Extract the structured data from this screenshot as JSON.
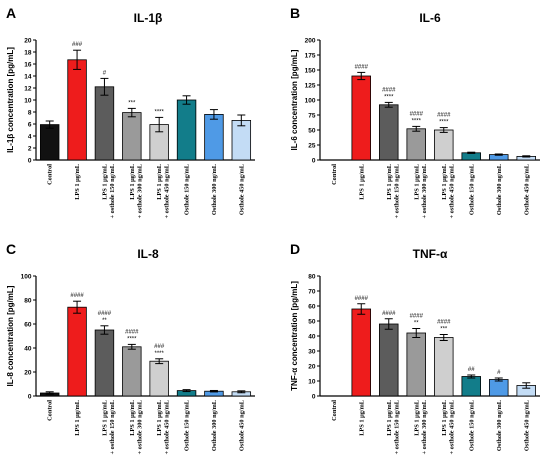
{
  "colors": {
    "Control": "#111111",
    "LPS": "#ee1c1c",
    "LPS_osthole_150": "#5c5c5c",
    "LPS_osthole_300": "#9a9a9a",
    "LPS_osthole_450": "#cfcfcf",
    "Osthole_150": "#127d8a",
    "Osthole_300": "#4f9ae6",
    "Osthole_450": "#c3dcf5"
  },
  "chart_data": [
    {
      "type": "bar",
      "panel_letter": "A",
      "title": "IL-1β",
      "ylabel": "IL-1β concentration [pg/mL]",
      "categories": [
        [
          "Control"
        ],
        [
          "LPS 1 μg/mL"
        ],
        [
          "LPS 1 μg/mL",
          "+ osthole 150 ng/mL"
        ],
        [
          "LPS 1 μg/mL",
          "+ osthole 300 ng/mL"
        ],
        [
          "LPS 1 μg/mL",
          "+ osthole 450 ng/mL"
        ],
        [
          "Osthole 150 ng/mL"
        ],
        [
          "Osthole 300 ng/mL"
        ],
        [
          "Osthole 450 ng/mL"
        ]
      ],
      "values": [
        5.9,
        16.7,
        12.2,
        7.9,
        5.9,
        10.0,
        7.6,
        6.6
      ],
      "errors": [
        0.6,
        1.6,
        1.4,
        0.7,
        1.2,
        0.7,
        0.8,
        0.9
      ],
      "annotations": [
        [],
        [
          "###"
        ],
        [
          "#"
        ],
        [
          "***"
        ],
        [
          "****"
        ],
        [],
        [],
        []
      ],
      "ylim": [
        0,
        20
      ],
      "yticks": [
        0,
        2,
        4,
        6,
        8,
        10,
        12,
        14,
        16,
        18,
        20
      ]
    },
    {
      "type": "bar",
      "panel_letter": "B",
      "title": "IL-6",
      "ylabel": "IL-6 concentration [pg/mL]",
      "categories": [
        [
          "Control"
        ],
        [
          "LPS 1 μg/mL"
        ],
        [
          "LPS 1 μg/mL",
          "+ osthole 150 ng/mL"
        ],
        [
          "LPS 1 μg/mL",
          "+ osthole 300 ng/mL"
        ],
        [
          "LPS 1 μg/mL",
          "+ osthole 450 ng/mL"
        ],
        [
          "Osthole 150 ng/mL"
        ],
        [
          "Osthole 300 ng/mL"
        ],
        [
          "Osthole 450 ng/mL"
        ]
      ],
      "values": [
        0,
        140,
        92,
        52,
        50,
        12,
        9,
        6
      ],
      "errors": [
        0,
        6,
        4,
        4,
        4,
        1,
        1,
        1
      ],
      "annotations": [
        [],
        [
          "####"
        ],
        [
          "####",
          "****"
        ],
        [
          "####",
          "****"
        ],
        [
          "####",
          "****"
        ],
        [],
        [],
        []
      ],
      "ylim": [
        0,
        200
      ],
      "yticks": [
        0,
        25,
        50,
        75,
        100,
        125,
        150,
        175,
        200
      ]
    },
    {
      "type": "bar",
      "panel_letter": "C",
      "title": "IL-8",
      "ylabel": "IL-8 concentration [pg/mL]",
      "categories": [
        [
          "Control"
        ],
        [
          "LPS 1 μg/mL"
        ],
        [
          "LPS 1 μg/mL",
          "+ osthole 150 ng/mL"
        ],
        [
          "LPS 1 μg/mL",
          "+ osthole 300 ng/mL"
        ],
        [
          "LPS 1 μg/mL",
          "+ osthole 450 ng/mL"
        ],
        [
          "Osthole 150 ng/mL"
        ],
        [
          "Osthole 300 ng/mL"
        ],
        [
          "Osthole 450 ng/mL"
        ]
      ],
      "values": [
        2.5,
        74,
        55,
        41,
        29,
        4.5,
        4,
        3.5
      ],
      "errors": [
        1,
        5,
        3.5,
        2,
        2,
        0.8,
        0.6,
        0.8
      ],
      "annotations": [
        [],
        [
          "####"
        ],
        [
          "####",
          "**"
        ],
        [
          "####",
          "****"
        ],
        [
          "###",
          "****"
        ],
        [],
        [],
        []
      ],
      "ylim": [
        0,
        100
      ],
      "yticks": [
        0,
        20,
        40,
        60,
        80,
        100
      ]
    },
    {
      "type": "bar",
      "panel_letter": "D",
      "title": "TNF-α",
      "ylabel": "TNF-α concentration [pg/mL]",
      "categories": [
        [
          "Control"
        ],
        [
          "LPS 1 μg/mL"
        ],
        [
          "LPS 1 μg/mL",
          "+ osthole 150 ng/mL"
        ],
        [
          "LPS 1 μg/mL",
          "+ osthole 300 ng/mL"
        ],
        [
          "LPS 1 μg/mL",
          "+ osthole 450 ng/mL"
        ],
        [
          "Osthole 150 ng/mL"
        ],
        [
          "Osthole 300 ng/mL"
        ],
        [
          "Osthole 450 ng/mL"
        ]
      ],
      "values": [
        0,
        58,
        48,
        42,
        39,
        13,
        11,
        7
      ],
      "errors": [
        0,
        3.5,
        3.5,
        3,
        2,
        1,
        1,
        1.8
      ],
      "annotations": [
        [],
        [
          "####"
        ],
        [
          "####"
        ],
        [
          "####",
          "**"
        ],
        [
          "####",
          "***"
        ],
        [
          "##"
        ],
        [
          "#"
        ],
        []
      ],
      "ylim": [
        0,
        80
      ],
      "yticks": [
        0,
        10,
        20,
        30,
        40,
        50,
        60,
        70,
        80
      ]
    }
  ]
}
